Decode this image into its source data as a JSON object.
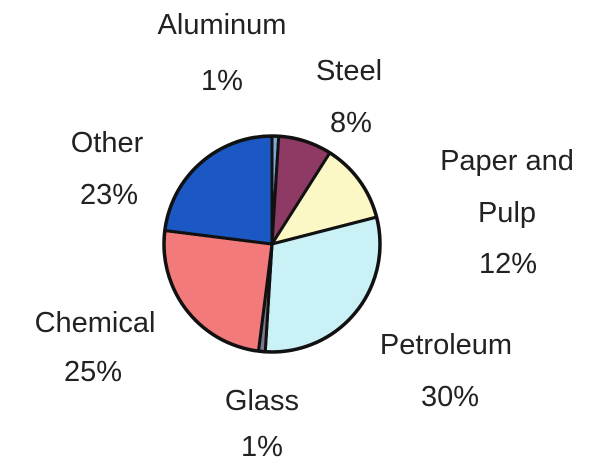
{
  "chart_data": {
    "type": "pie",
    "title": "",
    "start_angle_deg": 0,
    "direction": "clockwise",
    "slices": [
      {
        "label": "Aluminum",
        "pct_label": "1%",
        "value": 1,
        "color": "#7fa6d6"
      },
      {
        "label": "Steel",
        "pct_label": "8%",
        "value": 8,
        "color": "#8e3a64"
      },
      {
        "label": "Paper and Pulp",
        "pct_label": "12%",
        "value": 12,
        "color": "#fbf8c6"
      },
      {
        "label": "Petroleum",
        "pct_label": "30%",
        "value": 30,
        "color": "#c9f1f6"
      },
      {
        "label": "Glass",
        "pct_label": "1%",
        "value": 1,
        "color": "#7a7a8a"
      },
      {
        "label": "Chemical",
        "pct_label": "25%",
        "value": 25,
        "color": "#f37a7a"
      },
      {
        "label": "Other",
        "pct_label": "23%",
        "value": 23,
        "color": "#1b58c4"
      }
    ]
  }
}
